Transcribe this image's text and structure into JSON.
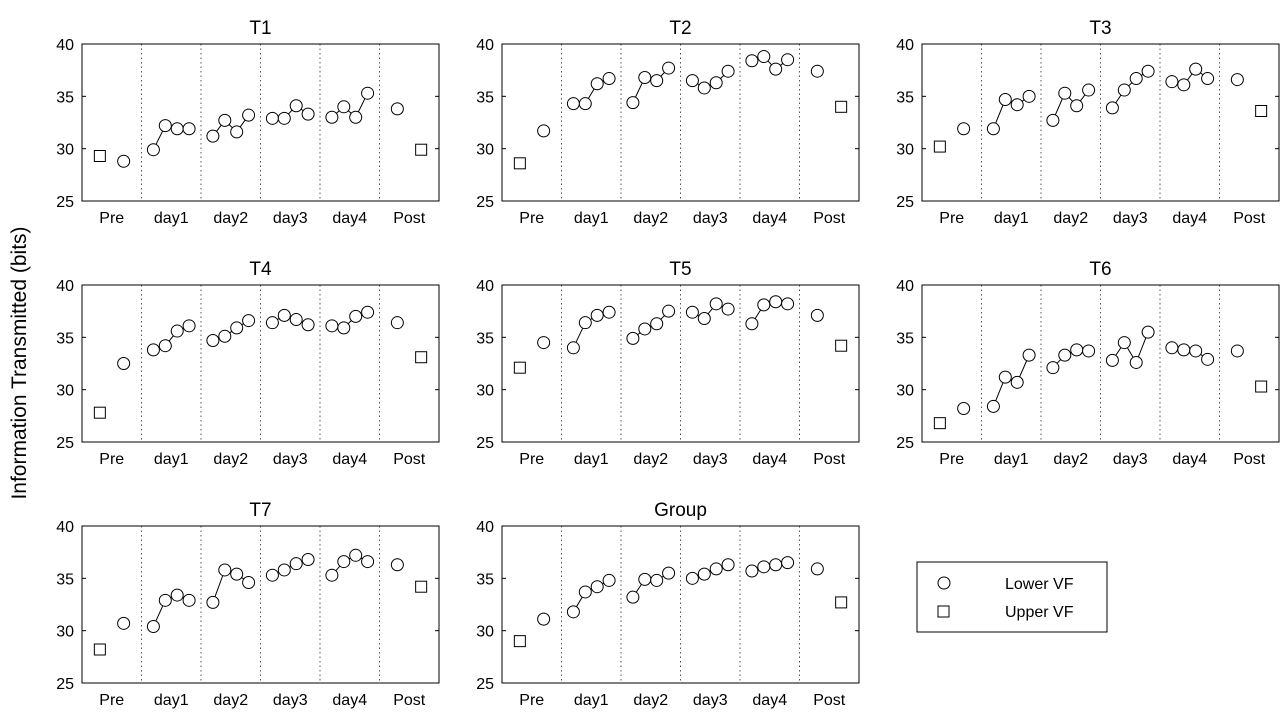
{
  "figure": {
    "ylabel": "Information Transmitted (bits)",
    "legend": {
      "placement": "right, bottom row",
      "entries": [
        {
          "label": "Lower VF",
          "marker": "circle"
        },
        {
          "label": "Upper VF",
          "marker": "square"
        }
      ]
    },
    "colors": {
      "line": "#000000",
      "marker_fill": "#ffffff",
      "separator": "#555555"
    }
  },
  "chart_data": [
    {
      "type": "line",
      "title": "T1",
      "categories": [
        "Pre",
        "day1",
        "day2",
        "day3",
        "day4",
        "Post"
      ],
      "ylim": [
        25,
        40
      ],
      "yticks": [
        25,
        30,
        35,
        40
      ],
      "lower_pre": 28.8,
      "upper_pre": 29.3,
      "days": [
        [
          29.9,
          32.2,
          31.9,
          31.9
        ],
        [
          31.2,
          32.7,
          31.6,
          33.2
        ],
        [
          32.9,
          32.9,
          34.1,
          33.3
        ],
        [
          33.0,
          34.0,
          33.0,
          35.3
        ]
      ],
      "lower_post": 33.8,
      "upper_post": 29.9
    },
    {
      "type": "line",
      "title": "T2",
      "categories": [
        "Pre",
        "day1",
        "day2",
        "day3",
        "day4",
        "Post"
      ],
      "ylim": [
        25,
        40
      ],
      "yticks": [
        25,
        30,
        35,
        40
      ],
      "lower_pre": 31.7,
      "upper_pre": 28.6,
      "days": [
        [
          34.3,
          34.3,
          36.2,
          36.7
        ],
        [
          34.4,
          36.8,
          36.5,
          37.7
        ],
        [
          36.5,
          35.8,
          36.3,
          37.4
        ],
        [
          38.4,
          38.8,
          37.6,
          38.5
        ]
      ],
      "lower_post": 37.4,
      "upper_post": 34.0
    },
    {
      "type": "line",
      "title": "T3",
      "categories": [
        "Pre",
        "day1",
        "day2",
        "day3",
        "day4",
        "Post"
      ],
      "ylim": [
        25,
        40
      ],
      "yticks": [
        25,
        30,
        35,
        40
      ],
      "lower_pre": 31.9,
      "upper_pre": 30.2,
      "days": [
        [
          31.9,
          34.7,
          34.2,
          35.0
        ],
        [
          32.7,
          35.3,
          34.1,
          35.6
        ],
        [
          33.9,
          35.6,
          36.7,
          37.4
        ],
        [
          36.4,
          36.1,
          37.6,
          36.7
        ]
      ],
      "lower_post": 36.6,
      "upper_post": 33.6
    },
    {
      "type": "line",
      "title": "T4",
      "categories": [
        "Pre",
        "day1",
        "day2",
        "day3",
        "day4",
        "Post"
      ],
      "ylim": [
        25,
        40
      ],
      "yticks": [
        25,
        30,
        35,
        40
      ],
      "lower_pre": 32.5,
      "upper_pre": 27.8,
      "days": [
        [
          33.8,
          34.2,
          35.6,
          36.1
        ],
        [
          34.7,
          35.1,
          35.9,
          36.6
        ],
        [
          36.4,
          37.1,
          36.7,
          36.2
        ],
        [
          36.1,
          35.9,
          37.0,
          37.4
        ]
      ],
      "lower_post": 36.4,
      "upper_post": 33.1
    },
    {
      "type": "line",
      "title": "T5",
      "categories": [
        "Pre",
        "day1",
        "day2",
        "day3",
        "day4",
        "Post"
      ],
      "ylim": [
        25,
        40
      ],
      "yticks": [
        25,
        30,
        35,
        40
      ],
      "lower_pre": 34.5,
      "upper_pre": 32.1,
      "days": [
        [
          34.0,
          36.4,
          37.1,
          37.4
        ],
        [
          34.9,
          35.8,
          36.3,
          37.5
        ],
        [
          37.4,
          36.8,
          38.2,
          37.7
        ],
        [
          36.3,
          38.1,
          38.4,
          38.2
        ]
      ],
      "lower_post": 37.1,
      "upper_post": 34.2
    },
    {
      "type": "line",
      "title": "T6",
      "categories": [
        "Pre",
        "day1",
        "day2",
        "day3",
        "day4",
        "Post"
      ],
      "ylim": [
        25,
        40
      ],
      "yticks": [
        25,
        30,
        35,
        40
      ],
      "lower_pre": 28.2,
      "upper_pre": 26.8,
      "days": [
        [
          28.4,
          31.2,
          30.7,
          33.3
        ],
        [
          32.1,
          33.3,
          33.8,
          33.7
        ],
        [
          32.8,
          34.5,
          32.6,
          35.5
        ],
        [
          34.0,
          33.8,
          33.7,
          32.9
        ]
      ],
      "lower_post": 33.7,
      "upper_post": 30.3
    },
    {
      "type": "line",
      "title": "T7",
      "categories": [
        "Pre",
        "day1",
        "day2",
        "day3",
        "day4",
        "Post"
      ],
      "ylim": [
        25,
        40
      ],
      "yticks": [
        25,
        30,
        35,
        40
      ],
      "lower_pre": 30.7,
      "upper_pre": 28.2,
      "days": [
        [
          30.4,
          32.9,
          33.4,
          32.9
        ],
        [
          32.7,
          35.8,
          35.4,
          34.6
        ],
        [
          35.3,
          35.8,
          36.4,
          36.8
        ],
        [
          35.3,
          36.6,
          37.2,
          36.6
        ]
      ],
      "lower_post": 36.3,
      "upper_post": 34.2
    },
    {
      "type": "line",
      "title": "Group",
      "categories": [
        "Pre",
        "day1",
        "day2",
        "day3",
        "day4",
        "Post"
      ],
      "ylim": [
        25,
        40
      ],
      "yticks": [
        25,
        30,
        35,
        40
      ],
      "lower_pre": 31.1,
      "upper_pre": 29.0,
      "days": [
        [
          31.8,
          33.7,
          34.2,
          34.8
        ],
        [
          33.2,
          34.9,
          34.8,
          35.5
        ],
        [
          35.0,
          35.4,
          35.9,
          36.3
        ],
        [
          35.7,
          36.1,
          36.3,
          36.5
        ]
      ],
      "lower_post": 35.9,
      "upper_post": 32.7
    }
  ]
}
